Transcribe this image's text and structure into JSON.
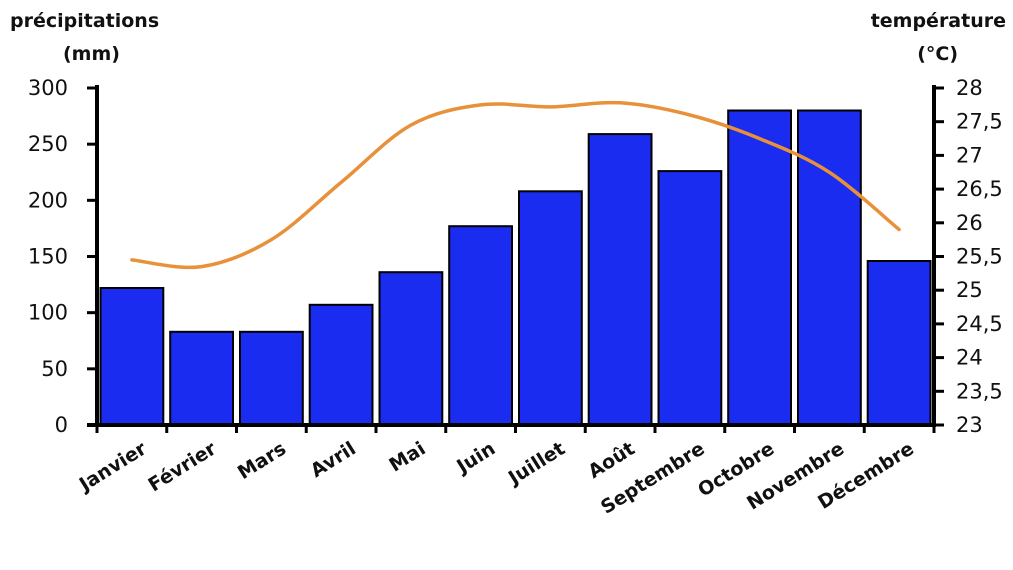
{
  "chart_data": {
    "type": "bar",
    "categories": [
      "Janvier",
      "Février",
      "Mars",
      "Avril",
      "Mai",
      "Juin",
      "Juillet",
      "Août",
      "Septembre",
      "Octobre",
      "Novembre",
      "Décembre"
    ],
    "series": [
      {
        "axis": "left",
        "type": "bar",
        "values": [
          122,
          83,
          83,
          107,
          136,
          177,
          208,
          259,
          226,
          280,
          280,
          146
        ],
        "color": "#1a2cf0"
      },
      {
        "axis": "right",
        "type": "line",
        "values": [
          25.45,
          25.35,
          25.75,
          26.6,
          27.45,
          27.75,
          27.72,
          27.78,
          27.6,
          27.25,
          26.75,
          25.9
        ],
        "color": "#e8913a"
      }
    ],
    "y_left": {
      "label_line1": "précipitations",
      "label_line2": "(mm)",
      "ylim": [
        0,
        300
      ],
      "ticks": [
        "0",
        "50",
        "100",
        "150",
        "200",
        "250",
        "300"
      ]
    },
    "y_right": {
      "label_line1": "température",
      "label_line2": "(°C)",
      "ylim": [
        23,
        28
      ],
      "ticks": [
        "23",
        "23,5",
        "24",
        "24,5",
        "25",
        "25,5",
        "26",
        "26,5",
        "27",
        "27,5",
        "28"
      ]
    },
    "grid": false,
    "legend": "none"
  }
}
